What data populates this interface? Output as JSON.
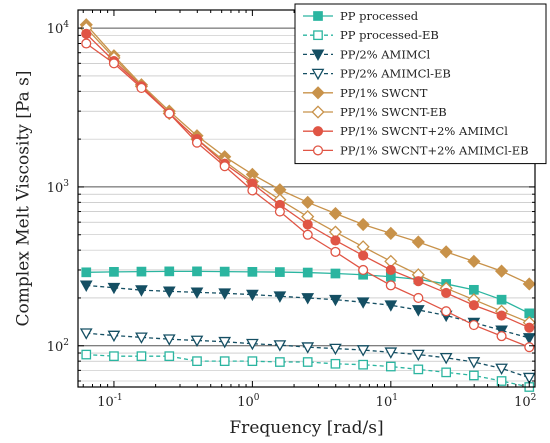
{
  "chart_data": {
    "type": "line",
    "xlabel": "Frequency [rad/s]",
    "ylabel": "Complex Melt Viscosity [Pa s]",
    "x_scale": "log",
    "y_scale": "log",
    "xlim": [
      0.055,
      110
    ],
    "ylim": [
      55,
      13000
    ],
    "grid": "horizontal",
    "legend_position": "top-right",
    "x_ticks": [
      {
        "value": 0.1,
        "base": "10",
        "exp": "-1"
      },
      {
        "value": 1,
        "base": "10",
        "exp": "0"
      },
      {
        "value": 10,
        "base": "10",
        "exp": "1"
      },
      {
        "value": 100,
        "base": "10",
        "exp": "2"
      }
    ],
    "y_ticks": [
      {
        "value": 100,
        "base": "10",
        "exp": "2"
      },
      {
        "value": 1000,
        "base": "10",
        "exp": "3"
      },
      {
        "value": 10000,
        "base": "10",
        "exp": "4"
      }
    ],
    "x": [
      0.0631,
      0.1,
      0.158,
      0.251,
      0.398,
      0.631,
      1,
      1.58,
      2.51,
      3.98,
      6.31,
      10,
      15.8,
      25.1,
      39.8,
      63.1,
      100
    ],
    "series": [
      {
        "name": "PP processed",
        "color": "#2bb5a0",
        "marker": "square",
        "fill": true,
        "dash": false,
        "values": [
          290,
          292,
          293,
          294,
          294,
          293,
          292,
          291,
          289,
          285,
          280,
          272,
          262,
          245,
          225,
          195,
          160
        ]
      },
      {
        "name": "PP processed-EB",
        "color": "#2bb5a0",
        "marker": "square",
        "fill": false,
        "dash": true,
        "values": [
          88,
          86,
          86,
          86,
          80,
          80,
          80,
          79,
          79,
          77,
          76,
          74,
          71,
          68,
          65,
          60,
          55
        ]
      },
      {
        "name": "PP/2% AMIMCl",
        "color": "#154f63",
        "marker": "triangle-down",
        "fill": true,
        "dash": true,
        "values": [
          240,
          232,
          224,
          220,
          217,
          214,
          210,
          205,
          200,
          195,
          188,
          180,
          168,
          155,
          140,
          125,
          112
        ]
      },
      {
        "name": "PP/2% AMIMCl-EB",
        "color": "#154f63",
        "marker": "triangle-down",
        "fill": false,
        "dash": true,
        "values": [
          120,
          116,
          113,
          110,
          108,
          106,
          103,
          101,
          98,
          96,
          94,
          91,
          88,
          84,
          79,
          72,
          63
        ]
      },
      {
        "name": "PP/1% SWCNT",
        "color": "#c8924a",
        "marker": "diamond",
        "fill": true,
        "dash": false,
        "values": [
          10500,
          6700,
          4400,
          3000,
          2100,
          1550,
          1200,
          960,
          800,
          680,
          580,
          510,
          450,
          390,
          340,
          295,
          245
        ]
      },
      {
        "name": "PP/1% SWCNT-EB",
        "color": "#c8924a",
        "marker": "diamond",
        "fill": false,
        "dash": false,
        "values": [
          10000,
          6500,
          4300,
          2900,
          2000,
          1450,
          1080,
          830,
          650,
          520,
          420,
          340,
          280,
          230,
          195,
          165,
          140
        ]
      },
      {
        "name": "PP/1% SWCNT+2% AMIMCl",
        "color": "#e05545",
        "marker": "circle",
        "fill": true,
        "dash": false,
        "values": [
          9200,
          6200,
          4300,
          2900,
          2000,
          1400,
          1050,
          770,
          580,
          460,
          370,
          300,
          255,
          215,
          180,
          155,
          130
        ]
      },
      {
        "name": "PP/1% SWCNT+2% AMIMCl-EB",
        "color": "#e05545",
        "marker": "circle",
        "fill": false,
        "dash": false,
        "values": [
          8000,
          6000,
          4200,
          2900,
          1900,
          1350,
          950,
          700,
          500,
          390,
          300,
          240,
          200,
          165,
          135,
          115,
          98
        ]
      }
    ]
  }
}
